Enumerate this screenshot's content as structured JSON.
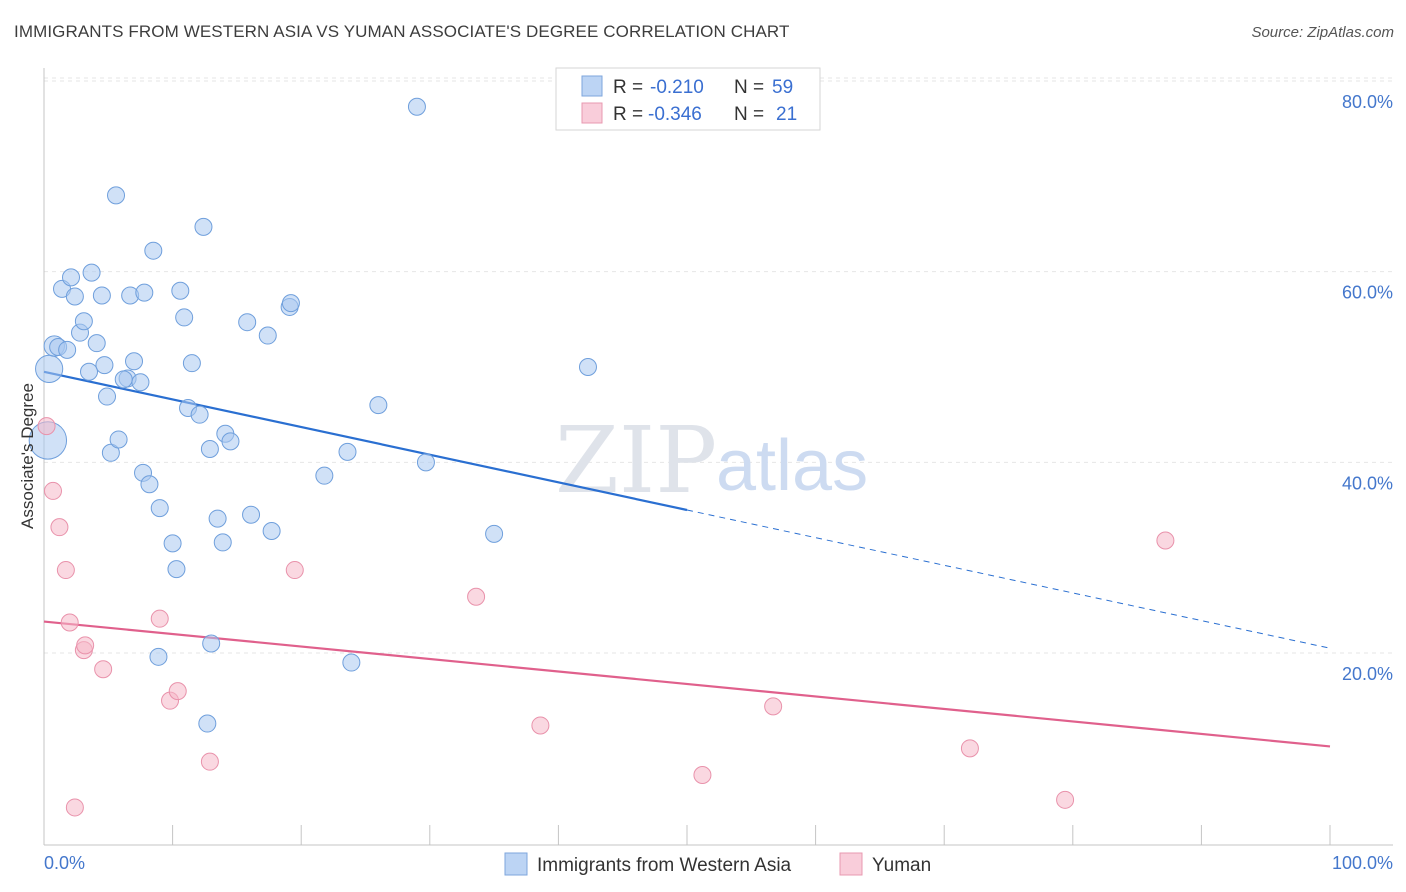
{
  "header": {
    "title": "IMMIGRANTS FROM WESTERN ASIA VS YUMAN ASSOCIATE'S DEGREE CORRELATION CHART",
    "source": "Source: ZipAtlas.com"
  },
  "watermark": {
    "part1": "ZIP",
    "part2": "atlas"
  },
  "legend": {
    "rows": [
      {
        "r_label": "R =",
        "r_value": "-0.210",
        "n_label": "N =",
        "n_value": "59",
        "color": "#a9c8f0"
      },
      {
        "r_label": "R =",
        "r_value": "-0.346",
        "n_label": "N =",
        "n_value": "21",
        "color": "#f5b8c9"
      }
    ]
  },
  "bottom_legend": [
    {
      "label": "Immigrants from Western Asia",
      "color": "#a9c8f0"
    },
    {
      "label": "Yuman",
      "color": "#f5b8c9"
    }
  ],
  "chart_data": {
    "type": "scatter",
    "title": "IMMIGRANTS FROM WESTERN ASIA VS YUMAN ASSOCIATE'S DEGREE CORRELATION CHART",
    "xlabel": "",
    "ylabel": "Associate's Degree",
    "xlim": [
      0,
      100
    ],
    "ylim": [
      0,
      84
    ],
    "x_tick_labels": [
      "0.0%",
      "100.0%"
    ],
    "y_ticks": [
      20,
      40,
      60,
      80
    ],
    "y_tick_labels": [
      "20.0%",
      "40.0%",
      "60.0%",
      "80.0%"
    ],
    "grid": true,
    "legend_position": "top-center",
    "series": [
      {
        "name": "Immigrants from Western Asia",
        "color": "#a9c8f0",
        "stroke": "#6f9fdc",
        "trend_color": "#2a6fd1",
        "trend": {
          "x0": 0,
          "y0": 49.5,
          "x1": 50,
          "y1": 35.0,
          "dashed_to_x": 100,
          "dashed_to_y": 20.5
        },
        "points": [
          [
            0.3,
            42.3,
            2.2
          ],
          [
            0.4,
            49.8,
            1.6
          ],
          [
            0.8,
            52.2,
            1.2
          ],
          [
            1.1,
            52.1,
            1.0
          ],
          [
            1.8,
            51.8,
            1.0
          ],
          [
            1.4,
            58.2,
            1.0
          ],
          [
            2.1,
            59.4,
            1.0
          ],
          [
            2.4,
            57.4,
            1.0
          ],
          [
            2.8,
            53.6,
            1.0
          ],
          [
            3.1,
            54.8,
            1.0
          ],
          [
            3.5,
            49.5,
            1.0
          ],
          [
            3.7,
            59.9,
            1.0
          ],
          [
            4.1,
            52.5,
            1.0
          ],
          [
            4.5,
            57.5,
            1.0
          ],
          [
            4.7,
            50.2,
            1.0
          ],
          [
            4.9,
            46.9,
            1.0
          ],
          [
            5.2,
            41.0,
            1.0
          ],
          [
            5.8,
            42.4,
            1.0
          ],
          [
            5.6,
            68.0,
            1.0
          ],
          [
            6.7,
            57.5,
            1.0
          ],
          [
            7.0,
            50.6,
            1.0
          ],
          [
            6.5,
            48.8,
            1.0
          ],
          [
            6.2,
            48.7,
            1.0
          ],
          [
            7.5,
            48.4,
            1.0
          ],
          [
            7.8,
            57.8,
            1.0
          ],
          [
            7.7,
            38.9,
            1.0
          ],
          [
            8.2,
            37.7,
            1.0
          ],
          [
            8.5,
            62.2,
            1.0
          ],
          [
            9.0,
            35.2,
            1.0
          ],
          [
            10.0,
            31.5,
            1.0
          ],
          [
            10.3,
            28.8,
            1.0
          ],
          [
            10.6,
            58.0,
            1.0
          ],
          [
            10.9,
            55.2,
            1.0
          ],
          [
            11.2,
            45.7,
            1.0
          ],
          [
            11.5,
            50.4,
            1.0
          ],
          [
            12.1,
            45.0,
            1.0
          ],
          [
            12.4,
            64.7,
            1.0
          ],
          [
            12.9,
            41.4,
            1.0
          ],
          [
            13.5,
            34.1,
            1.0
          ],
          [
            13.9,
            31.6,
            1.0
          ],
          [
            14.1,
            43.0,
            1.0
          ],
          [
            14.5,
            42.2,
            1.0
          ],
          [
            15.8,
            54.7,
            1.0
          ],
          [
            16.1,
            34.5,
            1.0
          ],
          [
            17.4,
            53.3,
            1.0
          ],
          [
            17.7,
            32.8,
            1.0
          ],
          [
            19.1,
            56.3,
            1.0
          ],
          [
            19.2,
            56.7,
            1.0
          ],
          [
            21.8,
            38.6,
            1.0
          ],
          [
            23.6,
            41.1,
            1.0
          ],
          [
            26.0,
            46.0,
            1.0
          ],
          [
            29.0,
            77.3,
            1.0
          ],
          [
            29.7,
            40.0,
            1.0
          ],
          [
            35.0,
            32.5,
            1.0
          ],
          [
            42.3,
            50.0,
            1.0
          ],
          [
            8.9,
            19.6,
            1.0
          ],
          [
            13.0,
            21.0,
            1.0
          ],
          [
            12.7,
            12.6,
            1.0
          ],
          [
            23.9,
            19.0,
            1.0
          ]
        ]
      },
      {
        "name": "Yuman",
        "color": "#f5b8c9",
        "stroke": "#e992ab",
        "trend_color": "#e0608c",
        "trend": {
          "x0": 0,
          "y0": 23.3,
          "x1": 100,
          "y1": 10.2
        },
        "points": [
          [
            0.2,
            43.8,
            1.0
          ],
          [
            0.7,
            37.0,
            1.0
          ],
          [
            1.2,
            33.2,
            1.0
          ],
          [
            1.7,
            28.7,
            1.0
          ],
          [
            2.0,
            23.2,
            1.0
          ],
          [
            2.4,
            3.8,
            1.0
          ],
          [
            3.1,
            20.3,
            1.0
          ],
          [
            3.2,
            20.8,
            1.0
          ],
          [
            4.6,
            18.3,
            1.0
          ],
          [
            9.0,
            23.6,
            1.0
          ],
          [
            9.8,
            15.0,
            1.0
          ],
          [
            10.4,
            16.0,
            1.0
          ],
          [
            12.9,
            8.6,
            1.0
          ],
          [
            19.5,
            28.7,
            1.0
          ],
          [
            33.6,
            25.9,
            1.0
          ],
          [
            38.6,
            12.4,
            1.0
          ],
          [
            51.2,
            7.2,
            1.0
          ],
          [
            56.7,
            14.4,
            1.0
          ],
          [
            72.0,
            10.0,
            1.0
          ],
          [
            79.4,
            4.6,
            1.0
          ],
          [
            87.2,
            31.8,
            1.0
          ]
        ]
      }
    ]
  }
}
